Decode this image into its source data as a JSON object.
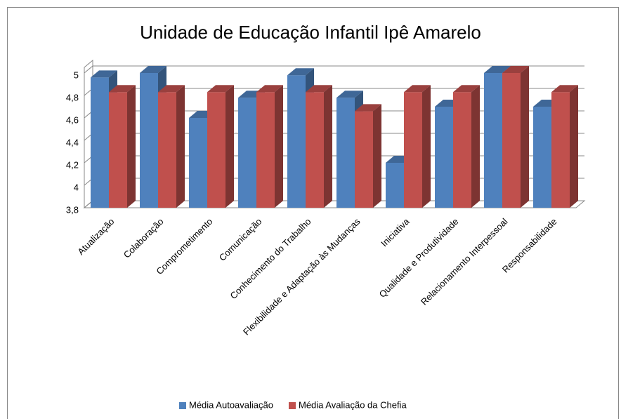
{
  "chart_data": {
    "type": "bar3d",
    "title": "Unidade de Educação Infantil Ipê Amarelo",
    "categories": [
      "Atualização",
      "Colaboração",
      "Comprometimento",
      "Comunicação",
      "Conhecimento do Trabalho",
      "Flexibilidade e Adaptação às Mudanças",
      "Iniciativa",
      "Qualidade e Produtividade",
      "Relacionamento Interpessoal",
      "Responsabilidade"
    ],
    "series": [
      {
        "name": "Média Autoavaliação",
        "color": "#4f81bd",
        "values": [
          4.96,
          5,
          4.6,
          4.78,
          4.98,
          4.78,
          4.2,
          4.7,
          5,
          4.7
        ]
      },
      {
        "name": "Média Avaliação da Chefia",
        "color": "#c0504d",
        "values": [
          4.83,
          4.83,
          4.83,
          4.83,
          4.83,
          4.66,
          4.83,
          4.83,
          5,
          4.83
        ]
      }
    ],
    "ylim": [
      3.8,
      5
    ],
    "yticks": [
      {
        "value": 3.8,
        "label": "3,8"
      },
      4,
      {
        "value": 4.2,
        "label": "4,2"
      },
      {
        "value": 4.4,
        "label": "4,4"
      },
      {
        "value": 4.6,
        "label": "4,6"
      },
      {
        "value": 4.8,
        "label": "4,8"
      },
      5
    ],
    "grid": true,
    "legend": "bottom"
  }
}
